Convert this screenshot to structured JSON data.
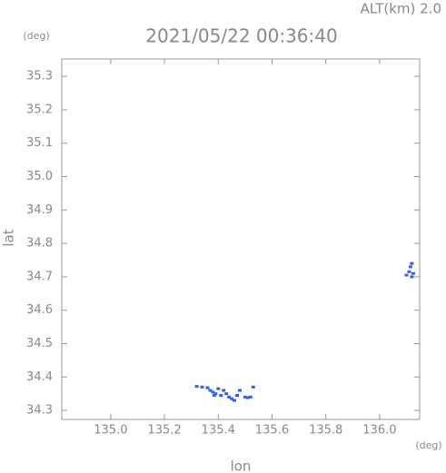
{
  "chart_data": {
    "type": "scatter",
    "title": "2021/05/22 00:36:40",
    "subtitle": "ALT(km) 2.0",
    "y_unit": "(deg)",
    "x_unit": "(deg)",
    "ylabel": "lat",
    "xlabel": "lon",
    "xlim": [
      134.818,
      136.149
    ],
    "ylim": [
      34.273,
      35.352
    ],
    "xticks": [
      {
        "value": 135.0,
        "label": "135.0"
      },
      135.2,
      135.4,
      135.6,
      135.8,
      {
        "value": 136.0,
        "label": "136.0"
      }
    ],
    "yticks": [
      34.3,
      34.4,
      34.5,
      34.6,
      34.7,
      34.8,
      34.9,
      {
        "value": 35.0,
        "label": "35.0"
      },
      35.1,
      35.2,
      35.3
    ],
    "series": [
      {
        "color": "#3a5ee0",
        "x": [
          135.32,
          135.34,
          135.36,
          135.37,
          135.38,
          135.385,
          135.39,
          135.4,
          135.41,
          135.42,
          135.43,
          135.44,
          135.45,
          135.46,
          135.47,
          135.48,
          135.5,
          135.51,
          135.52,
          135.53,
          136.1,
          136.11,
          136.115,
          136.12,
          136.12,
          136.125
        ],
        "values": [
          34.372,
          34.37,
          34.368,
          34.36,
          34.355,
          34.345,
          34.35,
          34.365,
          34.345,
          34.36,
          34.35,
          34.34,
          34.335,
          34.33,
          34.345,
          34.36,
          34.34,
          34.338,
          34.34,
          34.37,
          34.705,
          34.715,
          34.73,
          34.74,
          34.7,
          34.71
        ]
      }
    ]
  }
}
